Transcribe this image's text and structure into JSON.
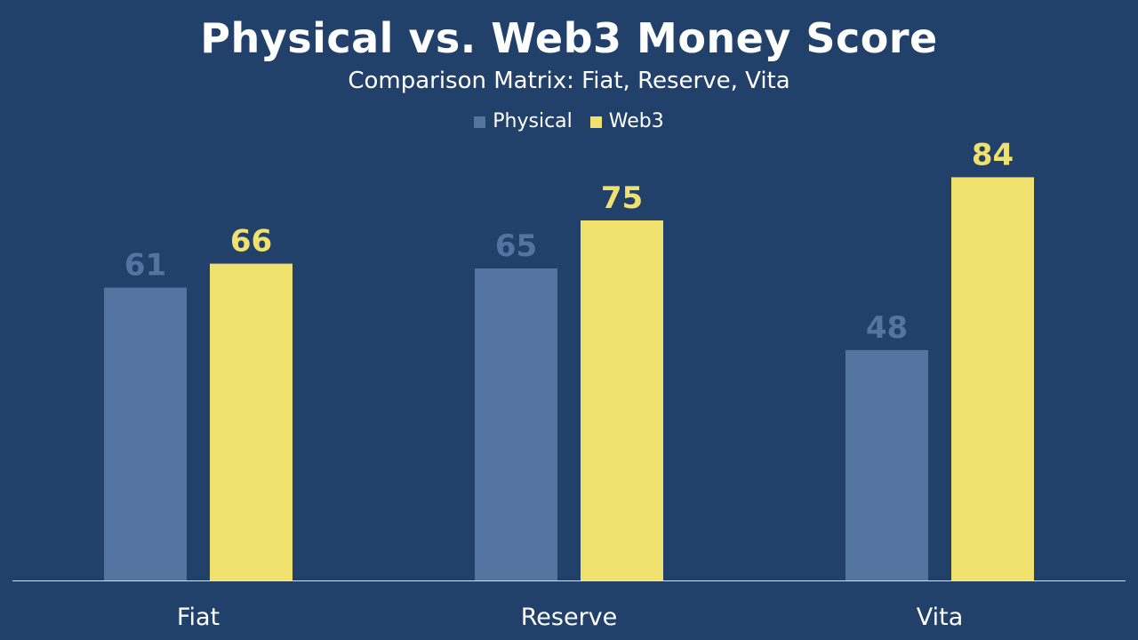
{
  "chart_data": {
    "type": "bar",
    "title": "Physical vs. Web3 Money Score",
    "subtitle": "Comparison Matrix: Fiat, Reserve, Vita",
    "categories": [
      "Fiat",
      "Reserve",
      "Vita"
    ],
    "series": [
      {
        "name": "Physical",
        "values": [
          61,
          65,
          48
        ],
        "color": "#52749e"
      },
      {
        "name": "Web3",
        "values": [
          66,
          75,
          84
        ],
        "color": "#f0e06e"
      }
    ],
    "xlabel": "",
    "ylabel": "",
    "ylim": [
      0,
      100
    ],
    "grid": false,
    "legend_position": "top-center",
    "data_labels": true
  },
  "colors": {
    "background": "#21416b",
    "axis_line": "#ffffff",
    "text": "#ffffff"
  }
}
